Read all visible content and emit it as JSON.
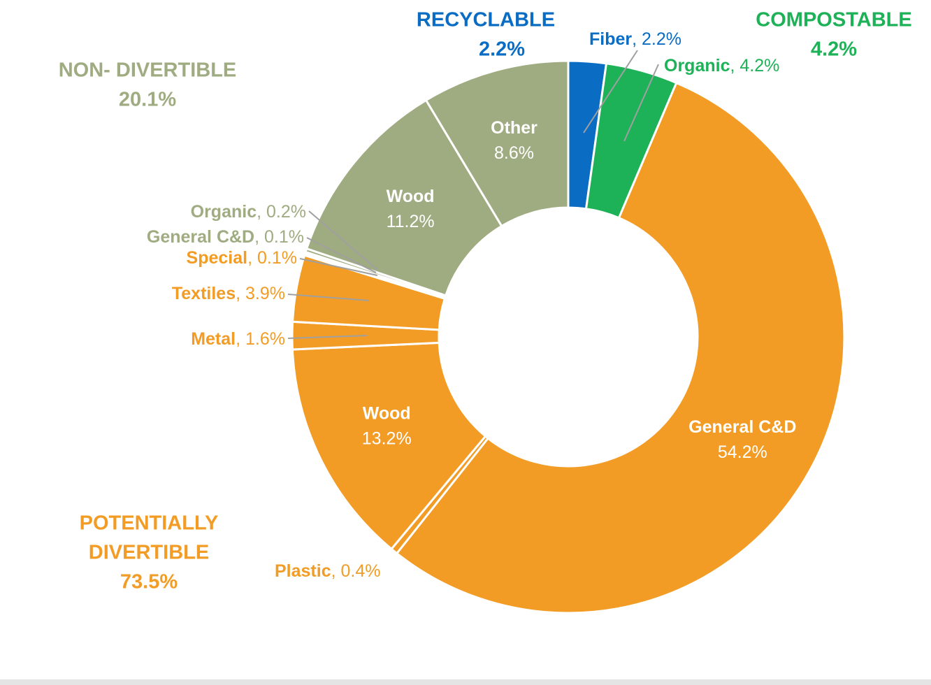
{
  "chart_data": {
    "type": "donut",
    "categories": [
      "Fiber",
      "Organic",
      "General C&D",
      "Plastic",
      "Wood",
      "Metal",
      "Textiles",
      "Special",
      "General C&D",
      "Organic",
      "Wood",
      "Other"
    ],
    "values": [
      2.2,
      4.2,
      54.2,
      0.4,
      13.2,
      1.6,
      3.9,
      0.1,
      0.1,
      0.2,
      11.2,
      8.6
    ],
    "value_labels": [
      "2.2%",
      "4.2%",
      "54.2%",
      "0.4%",
      "13.2%",
      "1.6%",
      "3.9%",
      "0.1%",
      "0.1%",
      "0.2%",
      "11.2%",
      "8.6%"
    ],
    "colors": [
      "#0a6cc2",
      "#1db257",
      "#f29c25",
      "#f29c25",
      "#f29c25",
      "#f29c25",
      "#f29c25",
      "#f29c25",
      "#9fab80",
      "#9fab80",
      "#9fab80",
      "#9fab80"
    ],
    "separator": ", ",
    "groups": [
      {
        "name": [
          "RECYCLABLE"
        ],
        "label": "2.2%",
        "color": "#0a6cc2"
      },
      {
        "name": [
          "COMPOSTABLE"
        ],
        "label": "4.2%",
        "color": "#1db257"
      },
      {
        "name": [
          "NON- DIVERTIBLE"
        ],
        "label": "20.1%",
        "color": "#9fab80"
      },
      {
        "name": [
          "POTENTIALLY",
          "DIVERTIBLE"
        ],
        "label": "73.5%",
        "color": "#f29c25"
      }
    ]
  }
}
